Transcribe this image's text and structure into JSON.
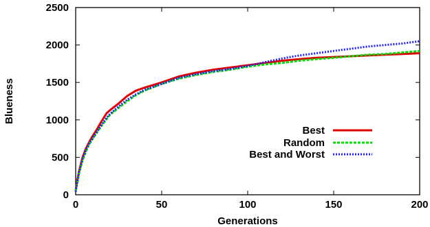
{
  "chart_data": {
    "type": "line",
    "title": "",
    "xlabel": "Generations",
    "ylabel": "Blueness",
    "xlim": [
      0,
      200
    ],
    "ylim": [
      0,
      2500
    ],
    "xticks": [
      0,
      50,
      100,
      150,
      200
    ],
    "yticks": [
      0,
      500,
      1000,
      1500,
      2000,
      2500
    ],
    "grid": false,
    "legend": "inside, right-center",
    "series": [
      {
        "name": "Best",
        "color": "#e00000",
        "style": "solid",
        "x": [
          0,
          1,
          2,
          4,
          6,
          8,
          10,
          12,
          15,
          18,
          20,
          25,
          30,
          35,
          40,
          50,
          60,
          70,
          80,
          90,
          100,
          110,
          120,
          130,
          140,
          150,
          160,
          170,
          180,
          190,
          200
        ],
        "y": [
          60,
          200,
          320,
          500,
          620,
          710,
          790,
          860,
          980,
          1090,
          1130,
          1220,
          1320,
          1390,
          1430,
          1500,
          1580,
          1630,
          1670,
          1700,
          1730,
          1760,
          1790,
          1810,
          1830,
          1840,
          1850,
          1860,
          1870,
          1880,
          1890
        ]
      },
      {
        "name": "Random",
        "color": "#00dd00",
        "style": "dashed",
        "x": [
          0,
          1,
          2,
          4,
          6,
          8,
          10,
          12,
          15,
          18,
          20,
          25,
          30,
          35,
          40,
          50,
          60,
          70,
          80,
          90,
          100,
          110,
          120,
          130,
          140,
          150,
          160,
          170,
          180,
          190,
          200
        ],
        "y": [
          50,
          170,
          290,
          460,
          580,
          680,
          750,
          820,
          920,
          1010,
          1070,
          1160,
          1250,
          1330,
          1390,
          1480,
          1550,
          1600,
          1640,
          1670,
          1710,
          1740,
          1760,
          1790,
          1810,
          1830,
          1850,
          1870,
          1880,
          1900,
          1920
        ]
      },
      {
        "name": "Best and Worst",
        "color": "#2020ff",
        "style": "dotted",
        "x": [
          0,
          1,
          2,
          4,
          6,
          8,
          10,
          12,
          15,
          18,
          20,
          25,
          30,
          35,
          40,
          50,
          60,
          70,
          80,
          90,
          100,
          110,
          120,
          130,
          140,
          150,
          160,
          170,
          180,
          190,
          200
        ],
        "y": [
          40,
          180,
          300,
          480,
          600,
          690,
          760,
          830,
          930,
          1030,
          1080,
          1180,
          1270,
          1340,
          1400,
          1480,
          1560,
          1610,
          1650,
          1680,
          1720,
          1770,
          1820,
          1860,
          1890,
          1920,
          1950,
          1980,
          2000,
          2020,
          2050
        ]
      }
    ]
  }
}
